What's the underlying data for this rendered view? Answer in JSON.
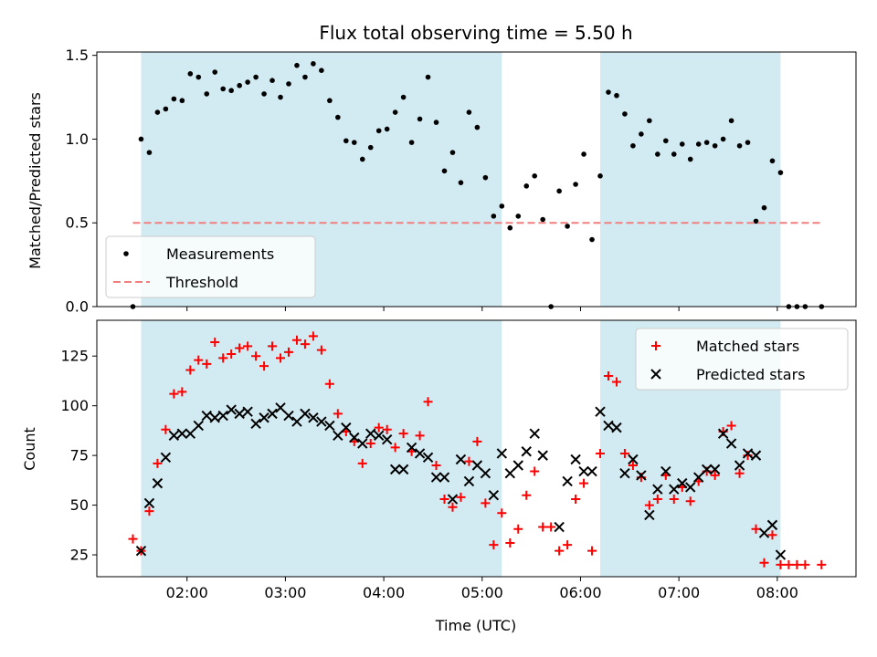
{
  "chart_data": [
    {
      "type": "scatter",
      "title": "Flux total observing time = 5.50 h",
      "ylabel": "Matched/Predicted stars",
      "xlabel": "",
      "xlim": [
        "01:05",
        "08:48"
      ],
      "ylim": [
        0,
        1.52
      ],
      "yticks": [
        0.0,
        0.5,
        1.0,
        1.5
      ],
      "ytick_labels": [
        "0.0",
        "0.5",
        "1.0",
        "1.5"
      ],
      "grid": false,
      "legend_position": "lower-left",
      "shaded_intervals": [
        [
          "01:32",
          "05:12"
        ],
        [
          "06:12",
          "08:02"
        ]
      ],
      "shade_color": "#add8e6",
      "series": [
        {
          "name": "Measurements",
          "marker": "dot",
          "color": "#000000",
          "points": [
            [
              "01:27",
              0.0
            ],
            [
              "01:32",
              1.0
            ],
            [
              "01:37",
              0.92
            ],
            [
              "01:42",
              1.16
            ],
            [
              "01:47",
              1.18
            ],
            [
              "01:52",
              1.24
            ],
            [
              "01:57",
              1.23
            ],
            [
              "02:02",
              1.39
            ],
            [
              "02:07",
              1.37
            ],
            [
              "02:12",
              1.27
            ],
            [
              "02:17",
              1.4
            ],
            [
              "02:22",
              1.3
            ],
            [
              "02:27",
              1.29
            ],
            [
              "02:32",
              1.32
            ],
            [
              "02:37",
              1.34
            ],
            [
              "02:42",
              1.37
            ],
            [
              "02:47",
              1.27
            ],
            [
              "02:52",
              1.35
            ],
            [
              "02:57",
              1.25
            ],
            [
              "03:02",
              1.33
            ],
            [
              "03:07",
              1.44
            ],
            [
              "03:12",
              1.37
            ],
            [
              "03:17",
              1.45
            ],
            [
              "03:22",
              1.41
            ],
            [
              "03:27",
              1.23
            ],
            [
              "03:32",
              1.13
            ],
            [
              "03:37",
              0.99
            ],
            [
              "03:42",
              0.98
            ],
            [
              "03:47",
              0.88
            ],
            [
              "03:52",
              0.95
            ],
            [
              "03:57",
              1.05
            ],
            [
              "04:02",
              1.06
            ],
            [
              "04:07",
              1.16
            ],
            [
              "04:12",
              1.25
            ],
            [
              "04:17",
              0.98
            ],
            [
              "04:22",
              1.12
            ],
            [
              "04:27",
              1.37
            ],
            [
              "04:32",
              1.1
            ],
            [
              "04:37",
              0.81
            ],
            [
              "04:42",
              0.92
            ],
            [
              "04:47",
              0.74
            ],
            [
              "04:52",
              1.16
            ],
            [
              "04:57",
              1.07
            ],
            [
              "05:02",
              0.77
            ],
            [
              "05:07",
              0.54
            ],
            [
              "05:12",
              0.6
            ],
            [
              "05:17",
              0.47
            ],
            [
              "05:22",
              0.54
            ],
            [
              "05:27",
              0.72
            ],
            [
              "05:32",
              0.78
            ],
            [
              "05:37",
              0.52
            ],
            [
              "05:42",
              0.0
            ],
            [
              "05:47",
              0.69
            ],
            [
              "05:52",
              0.48
            ],
            [
              "05:57",
              0.73
            ],
            [
              "06:02",
              0.91
            ],
            [
              "06:07",
              0.4
            ],
            [
              "06:12",
              0.78
            ],
            [
              "06:17",
              1.28
            ],
            [
              "06:22",
              1.26
            ],
            [
              "06:27",
              1.15
            ],
            [
              "06:32",
              0.96
            ],
            [
              "06:37",
              1.03
            ],
            [
              "06:42",
              1.11
            ],
            [
              "06:47",
              0.91
            ],
            [
              "06:52",
              0.99
            ],
            [
              "06:57",
              0.91
            ],
            [
              "07:02",
              0.97
            ],
            [
              "07:07",
              0.88
            ],
            [
              "07:12",
              0.97
            ],
            [
              "07:17",
              0.98
            ],
            [
              "07:22",
              0.96
            ],
            [
              "07:27",
              1.0
            ],
            [
              "07:32",
              1.11
            ],
            [
              "07:37",
              0.96
            ],
            [
              "07:42",
              0.98
            ],
            [
              "07:47",
              0.51
            ],
            [
              "07:52",
              0.59
            ],
            [
              "07:57",
              0.87
            ],
            [
              "08:02",
              0.8
            ],
            [
              "08:07",
              0.0
            ],
            [
              "08:12",
              0.0
            ],
            [
              "08:17",
              0.0
            ],
            [
              "08:27",
              0.0
            ]
          ]
        },
        {
          "name": "Threshold",
          "type": "line",
          "style": "dashed",
          "color": "#f08080",
          "points": [
            [
              "01:27",
              0.5
            ],
            [
              "08:27",
              0.5
            ]
          ]
        }
      ]
    },
    {
      "type": "scatter",
      "title": "",
      "xlabel": "Time (UTC)",
      "ylabel": "Count",
      "xlim": [
        "01:05",
        "08:48"
      ],
      "ylim": [
        14,
        143
      ],
      "xticks": [
        "02:00",
        "03:00",
        "04:00",
        "05:00",
        "06:00",
        "07:00",
        "08:00"
      ],
      "yticks": [
        25,
        50,
        75,
        100,
        125
      ],
      "ytick_labels": [
        "25",
        "50",
        "75",
        "100",
        "125"
      ],
      "grid": false,
      "legend_position": "upper-right",
      "shaded_intervals": [
        [
          "01:32",
          "05:12"
        ],
        [
          "06:12",
          "08:02"
        ]
      ],
      "shade_color": "#add8e6",
      "series": [
        {
          "name": "Matched stars",
          "marker": "plus",
          "color": "#ff0000",
          "points": [
            [
              "01:27",
              33
            ],
            [
              "01:32",
              27
            ],
            [
              "01:37",
              47
            ],
            [
              "01:42",
              71
            ],
            [
              "01:47",
              88
            ],
            [
              "01:52",
              106
            ],
            [
              "01:57",
              107
            ],
            [
              "02:02",
              118
            ],
            [
              "02:07",
              123
            ],
            [
              "02:12",
              121
            ],
            [
              "02:17",
              132
            ],
            [
              "02:22",
              124
            ],
            [
              "02:27",
              126
            ],
            [
              "02:32",
              129
            ],
            [
              "02:37",
              130
            ],
            [
              "02:42",
              125
            ],
            [
              "02:47",
              120
            ],
            [
              "02:52",
              130
            ],
            [
              "02:57",
              124
            ],
            [
              "03:02",
              127
            ],
            [
              "03:07",
              133
            ],
            [
              "03:12",
              131
            ],
            [
              "03:17",
              135
            ],
            [
              "03:22",
              128
            ],
            [
              "03:27",
              111
            ],
            [
              "03:32",
              96
            ],
            [
              "03:37",
              87
            ],
            [
              "03:42",
              82
            ],
            [
              "03:47",
              71
            ],
            [
              "03:52",
              81
            ],
            [
              "03:57",
              89
            ],
            [
              "04:02",
              88
            ],
            [
              "04:07",
              79
            ],
            [
              "04:12",
              86
            ],
            [
              "04:17",
              77
            ],
            [
              "04:22",
              85
            ],
            [
              "04:27",
              102
            ],
            [
              "04:32",
              70
            ],
            [
              "04:37",
              53
            ],
            [
              "04:42",
              49
            ],
            [
              "04:47",
              54
            ],
            [
              "04:52",
              72
            ],
            [
              "04:57",
              82
            ],
            [
              "05:02",
              51
            ],
            [
              "05:07",
              30
            ],
            [
              "05:12",
              46
            ],
            [
              "05:17",
              31
            ],
            [
              "05:22",
              38
            ],
            [
              "05:27",
              55
            ],
            [
              "05:32",
              67
            ],
            [
              "05:37",
              39
            ],
            [
              "05:42",
              39
            ],
            [
              "05:47",
              27
            ],
            [
              "05:52",
              30
            ],
            [
              "05:57",
              53
            ],
            [
              "06:02",
              61
            ],
            [
              "06:07",
              27
            ],
            [
              "06:12",
              76
            ],
            [
              "06:17",
              115
            ],
            [
              "06:22",
              112
            ],
            [
              "06:27",
              76
            ],
            [
              "06:32",
              70
            ],
            [
              "06:37",
              64
            ],
            [
              "06:42",
              50
            ],
            [
              "06:47",
              53
            ],
            [
              "06:52",
              65
            ],
            [
              "06:57",
              53
            ],
            [
              "07:02",
              59
            ],
            [
              "07:07",
              52
            ],
            [
              "07:12",
              62
            ],
            [
              "07:17",
              67
            ],
            [
              "07:22",
              65
            ],
            [
              "07:27",
              87
            ],
            [
              "07:32",
              90
            ],
            [
              "07:37",
              66
            ],
            [
              "07:42",
              75
            ],
            [
              "07:47",
              38
            ],
            [
              "07:52",
              21
            ],
            [
              "07:57",
              35
            ],
            [
              "08:02",
              20
            ],
            [
              "08:07",
              20
            ],
            [
              "08:12",
              20
            ],
            [
              "08:17",
              20
            ],
            [
              "08:27",
              20
            ]
          ]
        },
        {
          "name": "Predicted stars",
          "marker": "x",
          "color": "#000000",
          "points": [
            [
              "01:32",
              27
            ],
            [
              "01:37",
              51
            ],
            [
              "01:42",
              61
            ],
            [
              "01:47",
              74
            ],
            [
              "01:52",
              85
            ],
            [
              "01:57",
              86
            ],
            [
              "02:02",
              86
            ],
            [
              "02:07",
              90
            ],
            [
              "02:12",
              95
            ],
            [
              "02:17",
              94
            ],
            [
              "02:22",
              95
            ],
            [
              "02:27",
              98
            ],
            [
              "02:32",
              96
            ],
            [
              "02:37",
              97
            ],
            [
              "02:42",
              91
            ],
            [
              "02:47",
              94
            ],
            [
              "02:52",
              96
            ],
            [
              "02:57",
              99
            ],
            [
              "03:02",
              95
            ],
            [
              "03:07",
              92
            ],
            [
              "03:12",
              96
            ],
            [
              "03:17",
              94
            ],
            [
              "03:22",
              92
            ],
            [
              "03:27",
              90
            ],
            [
              "03:32",
              85
            ],
            [
              "03:37",
              89
            ],
            [
              "03:42",
              84
            ],
            [
              "03:47",
              81
            ],
            [
              "03:52",
              86
            ],
            [
              "03:57",
              85
            ],
            [
              "04:02",
              83
            ],
            [
              "04:07",
              68
            ],
            [
              "04:12",
              68
            ],
            [
              "04:17",
              79
            ],
            [
              "04:22",
              76
            ],
            [
              "04:27",
              74
            ],
            [
              "04:32",
              64
            ],
            [
              "04:37",
              64
            ],
            [
              "04:42",
              53
            ],
            [
              "04:47",
              73
            ],
            [
              "04:52",
              62
            ],
            [
              "04:57",
              70
            ],
            [
              "05:02",
              66
            ],
            [
              "05:07",
              55
            ],
            [
              "05:12",
              76
            ],
            [
              "05:17",
              66
            ],
            [
              "05:22",
              70
            ],
            [
              "05:27",
              77
            ],
            [
              "05:32",
              86
            ],
            [
              "05:37",
              75
            ],
            [
              "05:47",
              39
            ],
            [
              "05:52",
              62
            ],
            [
              "05:57",
              73
            ],
            [
              "06:02",
              67
            ],
            [
              "06:07",
              67
            ],
            [
              "06:12",
              97
            ],
            [
              "06:17",
              90
            ],
            [
              "06:22",
              89
            ],
            [
              "06:27",
              66
            ],
            [
              "06:32",
              73
            ],
            [
              "06:37",
              65
            ],
            [
              "06:42",
              45
            ],
            [
              "06:47",
              58
            ],
            [
              "06:52",
              67
            ],
            [
              "06:57",
              58
            ],
            [
              "07:02",
              61
            ],
            [
              "07:07",
              59
            ],
            [
              "07:12",
              64
            ],
            [
              "07:17",
              68
            ],
            [
              "07:22",
              68
            ],
            [
              "07:27",
              86
            ],
            [
              "07:32",
              81
            ],
            [
              "07:37",
              70
            ],
            [
              "07:42",
              76
            ],
            [
              "07:47",
              75
            ],
            [
              "07:52",
              36
            ],
            [
              "07:57",
              40
            ],
            [
              "08:02",
              25
            ]
          ]
        }
      ]
    }
  ]
}
